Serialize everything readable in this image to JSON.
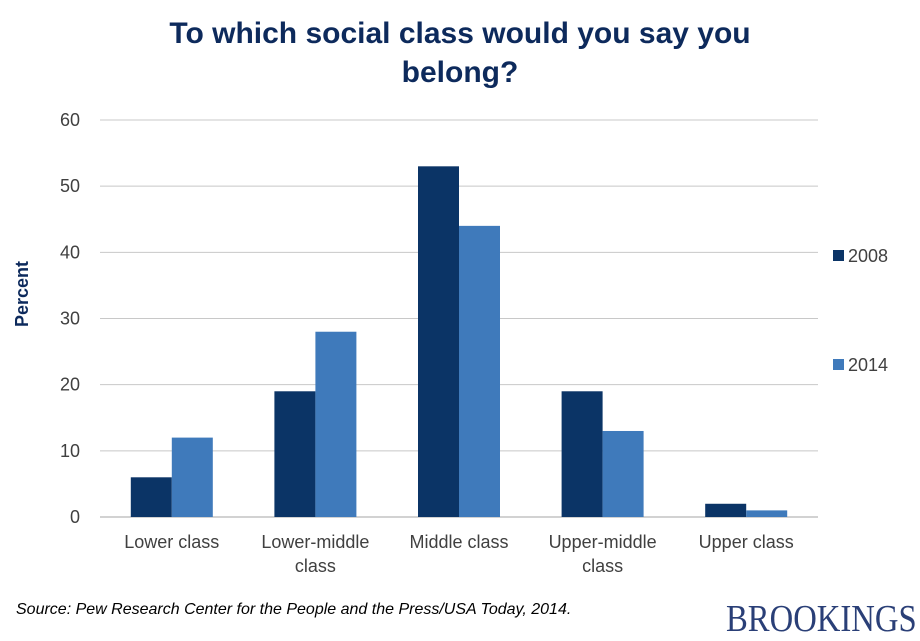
{
  "title_lines": [
    "To which social class would you say you",
    "belong?"
  ],
  "source": "Source: Pew Research Center for the People and the Press/USA Today, 2014.",
  "logo_text": "BROOKINGS",
  "colors": {
    "title": "#0d2a5c",
    "series_2008": "#0b3466",
    "series_2014": "#3f7abb",
    "grid": "#c8c8c8",
    "logo": "#2a3f77"
  },
  "chart_data": {
    "type": "bar",
    "title": "To which social class would you say you belong?",
    "ylabel": "Percent",
    "xlabel": "",
    "ylim": [
      0,
      60
    ],
    "yticks": [
      0,
      10,
      20,
      30,
      40,
      50,
      60
    ],
    "grid": true,
    "legend_position": "right",
    "categories": [
      [
        "Lower class"
      ],
      [
        "Lower-middle",
        "class"
      ],
      [
        "Middle class"
      ],
      [
        "Upper-middle",
        "class"
      ],
      [
        "Upper class"
      ]
    ],
    "series": [
      {
        "name": "2008",
        "color": "#0b3466",
        "values": [
          6,
          19,
          53,
          19,
          2
        ]
      },
      {
        "name": "2014",
        "color": "#3f7abb",
        "values": [
          12,
          28,
          44,
          13,
          1
        ]
      }
    ]
  }
}
